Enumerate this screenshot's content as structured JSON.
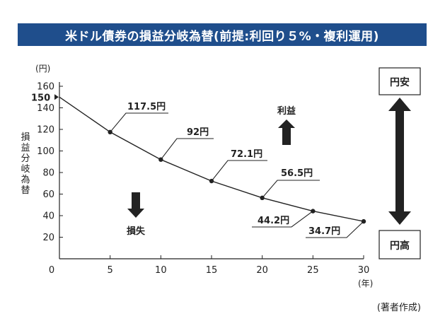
{
  "title": "米ドル債券の損益分岐為替(前提:利回り５%・複利運用)",
  "source_note": "(著者作成)",
  "ylabel_chars": [
    "損",
    "益",
    "分",
    "岐",
    "為",
    "替"
  ],
  "y_unit": "(円)",
  "x_unit": "(年)",
  "start_label": "150",
  "gain_label": "利益",
  "loss_label": "損失",
  "weak_yen_label": "円安",
  "strong_yen_label": "円高",
  "colors": {
    "title_bg": "#1f4e8c",
    "line": "#222222",
    "arrow": "#222222"
  },
  "chart_data": {
    "type": "line",
    "title": "米ドル債券の損益分岐為替(前提:利回り５%・複利運用)",
    "xlabel": "(年)",
    "ylabel": "損益分岐為替",
    "xlim": [
      0,
      30
    ],
    "ylim": [
      0,
      160
    ],
    "x_ticks": [
      0,
      5,
      10,
      15,
      20,
      25,
      30
    ],
    "y_ticks": [
      20,
      40,
      60,
      80,
      100,
      120,
      140,
      160
    ],
    "grid": false,
    "series": [
      {
        "values": [
          {
            "x": 0,
            "y": 150
          },
          {
            "x": 5,
            "y": 117.5
          },
          {
            "x": 10,
            "y": 92
          },
          {
            "x": 15,
            "y": 72.1
          },
          {
            "x": 20,
            "y": 56.5
          },
          {
            "x": 25,
            "y": 44.2
          },
          {
            "x": 30,
            "y": 34.7
          }
        ]
      }
    ],
    "data_labels": [
      "117.5円",
      "92円",
      "72.1円",
      "56.5円",
      "44.2円",
      "34.7円"
    ]
  }
}
